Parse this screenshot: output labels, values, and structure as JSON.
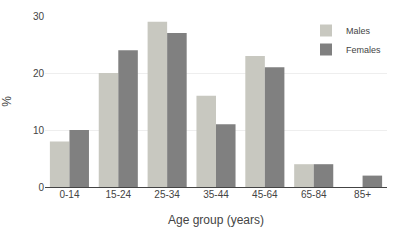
{
  "chart_data": {
    "type": "bar",
    "categories": [
      "0-14",
      "15-24",
      "25-34",
      "35-44",
      "45-64",
      "65-84",
      "85+"
    ],
    "series": [
      {
        "name": "Males",
        "color": "#c8c8c0",
        "values": [
          8,
          20,
          29,
          16,
          23,
          4,
          0
        ]
      },
      {
        "name": "Females",
        "color": "#808080",
        "values": [
          10,
          24,
          27,
          11,
          21,
          4,
          2
        ]
      }
    ],
    "xlabel": "Age group (years)",
    "ylabel": "%",
    "ylim": [
      0,
      30
    ],
    "yticks": [
      0,
      10,
      20,
      30
    ],
    "grid": true,
    "legend": "upper right"
  }
}
